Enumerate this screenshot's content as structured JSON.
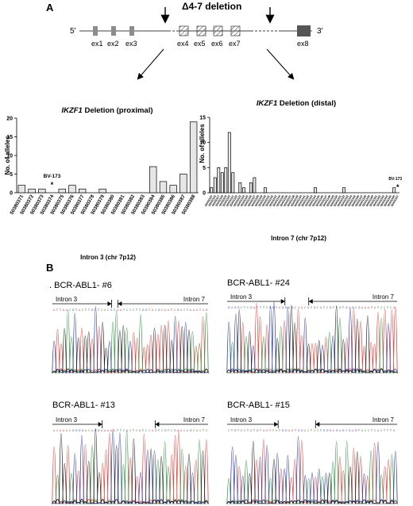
{
  "panel_a": {
    "label": "A",
    "deletion_title": "Δ4-7 deletion",
    "five_prime": "5'",
    "three_prime": "3'",
    "exons": [
      "ex1",
      "ex2",
      "ex3",
      "ex4",
      "ex5",
      "ex6",
      "ex7",
      "ex8"
    ]
  },
  "panel_b": {
    "label": "B",
    "traces": [
      {
        "title": ". BCR-ABL1- #6",
        "left_label": "Intron 3",
        "right_label": "Intron 7"
      },
      {
        "title": "BCR-ABL1- #24",
        "left_label": "Intron 3",
        "right_label": "Intron 7"
      },
      {
        "title": "BCR-ABL1- #13",
        "left_label": "Intron 3",
        "right_label": "Intron 7"
      },
      {
        "title": "BCR-ABL1- #15",
        "left_label": "Intron 3",
        "right_label": "Intron 7"
      }
    ],
    "trace_colors": [
      "#e8352c",
      "#2a8f3a",
      "#1f2fa8",
      "#111111"
    ]
  },
  "chart_data": [
    {
      "type": "bar",
      "title": "IKZF1 Deletion (proximal)",
      "title_gene": "IKZF1",
      "title_rest": " Deletion (proximal)",
      "ylabel": "No. of alleles",
      "xlabel": "Intron 3 (chr 7p12)",
      "ylim": [
        0,
        20
      ],
      "yticks": [
        "0",
        "5",
        "10",
        "15",
        "20"
      ],
      "categories": [
        "50380371",
        "50380372",
        "50380373",
        "50380374",
        "50380375",
        "50380376",
        "50380377",
        "50380378",
        "50380379",
        "50380380",
        "50380381",
        "50380382",
        "50380383",
        "50380384",
        "50380385",
        "50380386",
        "50380387",
        "50380388"
      ],
      "values": [
        2,
        1,
        1,
        0,
        1,
        2,
        1,
        0,
        1,
        0,
        0,
        0,
        0,
        7,
        3,
        2,
        5,
        19
      ],
      "annotation": {
        "text": "BV-173",
        "star": "*"
      }
    },
    {
      "type": "bar",
      "title": "IKZF1 Deletion (distal)",
      "title_gene": "IKZF1",
      "title_rest": " Deletion (distal)",
      "ylabel": "No. of alleles",
      "xlabel": "Intron 7 (chr 7p12)",
      "ylim": [
        0,
        15
      ],
      "yticks": [
        "0",
        "5",
        "10",
        "15"
      ],
      "categories": [
        "50431115",
        "50431116",
        "50431117",
        "50431118",
        "50431119",
        "50431120",
        "50431121",
        "50431122",
        "50431123",
        "50431124",
        "50431125",
        "50431126",
        "50431127",
        "50431128",
        "50431129",
        "50431130",
        "50431131",
        "50431132",
        "50431133",
        "50431134",
        "50431135",
        "50431136",
        "50431137",
        "50431138",
        "50431139",
        "50431140",
        "50431141",
        "50431142",
        "50431143",
        "50431144",
        "50431145",
        "50431146",
        "50431147",
        "50431148",
        "50431149",
        "50431150",
        "50431151",
        "50431152",
        "50431153",
        "50431154",
        "50431155",
        "50431156",
        "50431157",
        "50431158",
        "50431159",
        "50431160",
        "50431161",
        "50431162",
        "50431163",
        "50431164",
        "50431165",
        "50431166",
        "50431167"
      ],
      "values": [
        1,
        3,
        5,
        4,
        5,
        12,
        4,
        0,
        2,
        1,
        0,
        2,
        3,
        0,
        0,
        1,
        0,
        0,
        0,
        0,
        0,
        0,
        0,
        0,
        0,
        0,
        0,
        0,
        0,
        1,
        0,
        0,
        0,
        0,
        0,
        0,
        0,
        1,
        0,
        0,
        0,
        0,
        0,
        0,
        0,
        0,
        0,
        0,
        0,
        0,
        0,
        1,
        0
      ],
      "annotation": {
        "text": "BV-173",
        "star": "*"
      }
    }
  ]
}
